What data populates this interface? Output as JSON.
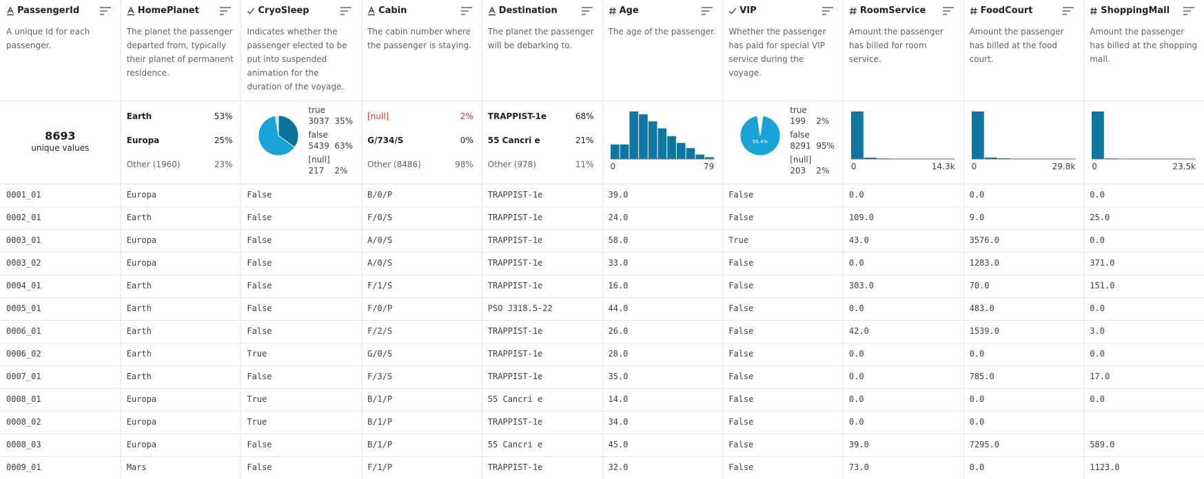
{
  "columns": [
    {
      "name": "PassengerId",
      "kind": "text",
      "description": "A unique Id for each passenger.",
      "summary": {
        "type": "unique",
        "count": 8693,
        "label": "unique values"
      }
    },
    {
      "name": "HomePlanet",
      "kind": "text",
      "description": "The planet the passenger departed from, typically their planet of permanent residence.",
      "summary": {
        "type": "top",
        "items": [
          {
            "label": "Earth",
            "percent": "53%"
          },
          {
            "label": "Europa",
            "percent": "25%"
          },
          {
            "label": "Other (1960)",
            "percent": "23%",
            "other": true
          }
        ]
      }
    },
    {
      "name": "CryoSleep",
      "kind": "bool",
      "description": "Indicates whether the passenger elected to be put into suspended animation for the duration of the voyage.",
      "summary": {
        "type": "pie",
        "items": [
          {
            "label": "true",
            "count": 3037,
            "percent": "35%",
            "color": "#0d729b"
          },
          {
            "label": "false",
            "count": 5439,
            "percent": "63%",
            "color": "#1aa3d6"
          },
          {
            "label": "[null]",
            "count": 217,
            "percent": "2%",
            "color": "#c9ebf7"
          }
        ]
      }
    },
    {
      "name": "Cabin",
      "kind": "text",
      "description": "The cabin number where the passenger is staying.",
      "summary": {
        "type": "top",
        "items": [
          {
            "label": "[null]",
            "percent": "2%",
            "missing": true
          },
          {
            "label": "G/734/S",
            "percent": "0%"
          },
          {
            "label": "Other (8486)",
            "percent": "98%",
            "other": true
          }
        ]
      }
    },
    {
      "name": "Destination",
      "kind": "text",
      "description": "The planet the passenger will be debarking to.",
      "summary": {
        "type": "top",
        "items": [
          {
            "label": "TRAPPIST-1e",
            "percent": "68%"
          },
          {
            "label": "55 Cancri e",
            "percent": "21%"
          },
          {
            "label": "Other (978)",
            "percent": "11%",
            "other": true
          }
        ]
      }
    },
    {
      "name": "Age",
      "kind": "number",
      "description": "The age of the passenger.",
      "summary": {
        "type": "histogram",
        "counts": [
          560,
          560,
          1830,
          1720,
          1450,
          1180,
          880,
          620,
          420,
          170,
          70
        ],
        "axis_labels": [
          "0",
          "79"
        ]
      }
    },
    {
      "name": "VIP",
      "kind": "bool",
      "description": "Whether the passenger has paid for special VIP service during the voyage.",
      "summary": {
        "type": "pie",
        "center_label": "95.4%",
        "items": [
          {
            "label": "true",
            "count": 199,
            "percent": "2%",
            "color": "#e4f5fb"
          },
          {
            "label": "false",
            "count": 8291,
            "percent": "95%",
            "color": "#1aa3d6"
          },
          {
            "label": "[null]",
            "count": 203,
            "percent": "2%",
            "color": "#ffffff"
          }
        ]
      }
    },
    {
      "name": "RoomService",
      "kind": "number",
      "description": "Amount the passenger has billed for room service.",
      "summary": {
        "type": "histogram",
        "counts": [
          8000,
          220,
          90,
          40,
          20,
          10,
          6,
          4
        ],
        "axis_labels": [
          "0",
          "14.3k"
        ]
      }
    },
    {
      "name": "FoodCourt",
      "kind": "number",
      "description": "Amount the passenger has billed at the food court.",
      "summary": {
        "type": "histogram",
        "counts": [
          8000,
          250,
          110,
          50,
          30,
          15,
          8,
          4
        ],
        "axis_labels": [
          "0",
          "29.8k"
        ]
      }
    },
    {
      "name": "ShoppingMall",
      "kind": "number",
      "description": "Amount the passenger has billed at the shopping mall.",
      "summary": {
        "type": "histogram",
        "counts": [
          8200,
          100,
          40,
          20,
          10,
          6,
          3,
          2
        ],
        "axis_labels": [
          "0",
          "23.5k"
        ]
      }
    }
  ],
  "rows": [
    [
      "0001_01",
      "Europa",
      "False",
      "B/0/P",
      "TRAPPIST-1e",
      "39.0",
      "False",
      "0.0",
      "0.0",
      "0.0"
    ],
    [
      "0002_01",
      "Earth",
      "False",
      "F/0/S",
      "TRAPPIST-1e",
      "24.0",
      "False",
      "109.0",
      "9.0",
      "25.0"
    ],
    [
      "0003_01",
      "Europa",
      "False",
      "A/0/S",
      "TRAPPIST-1e",
      "58.0",
      "True",
      "43.0",
      "3576.0",
      "0.0"
    ],
    [
      "0003_02",
      "Europa",
      "False",
      "A/0/S",
      "TRAPPIST-1e",
      "33.0",
      "False",
      "0.0",
      "1283.0",
      "371.0"
    ],
    [
      "0004_01",
      "Earth",
      "False",
      "F/1/S",
      "TRAPPIST-1e",
      "16.0",
      "False",
      "303.0",
      "70.0",
      "151.0"
    ],
    [
      "0005_01",
      "Earth",
      "False",
      "F/0/P",
      "PSO J318.5-22",
      "44.0",
      "False",
      "0.0",
      "483.0",
      "0.0"
    ],
    [
      "0006_01",
      "Earth",
      "False",
      "F/2/S",
      "TRAPPIST-1e",
      "26.0",
      "False",
      "42.0",
      "1539.0",
      "3.0"
    ],
    [
      "0006_02",
      "Earth",
      "True",
      "G/0/S",
      "TRAPPIST-1e",
      "28.0",
      "False",
      "0.0",
      "0.0",
      "0.0"
    ],
    [
      "0007_01",
      "Earth",
      "False",
      "F/3/S",
      "TRAPPIST-1e",
      "35.0",
      "False",
      "0.0",
      "785.0",
      "17.0"
    ],
    [
      "0008_01",
      "Europa",
      "True",
      "B/1/P",
      "55 Cancri e",
      "14.0",
      "False",
      "0.0",
      "0.0",
      "0.0"
    ],
    [
      "0008_02",
      "Europa",
      "True",
      "B/1/P",
      "TRAPPIST-1e",
      "34.0",
      "False",
      "0.0",
      "0.0",
      null
    ],
    [
      "0008_03",
      "Europa",
      "False",
      "B/1/P",
      "55 Cancri e",
      "45.0",
      "False",
      "39.0",
      "7295.0",
      "589.0"
    ],
    [
      "0009_01",
      "Mars",
      "False",
      "F/1/P",
      "TRAPPIST-1e",
      "32.0",
      "False",
      "73.0",
      "0.0",
      "1123.0"
    ]
  ]
}
